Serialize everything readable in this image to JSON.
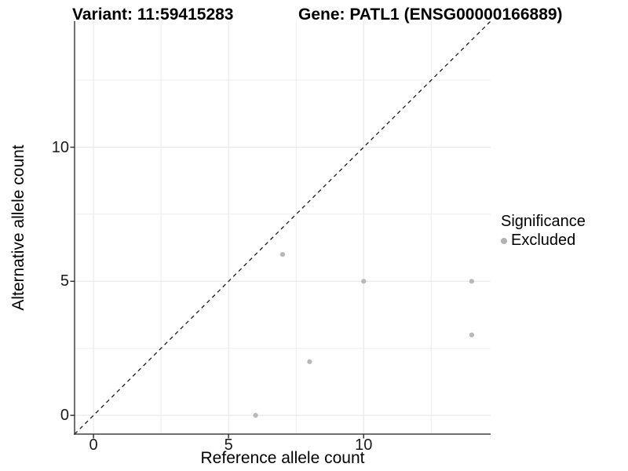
{
  "titles": {
    "variant": "Variant: 11:59415283",
    "gene": "Gene: PATL1 (ENSG00000166889)"
  },
  "legend": {
    "title": "Significance",
    "items": [
      {
        "label": "Excluded",
        "color": "#b3b3b3"
      }
    ]
  },
  "colors": {
    "point": "#b8b8b8",
    "grid_major": "#e9e9e9",
    "grid_minor": "#ededed",
    "axis_line": "#404040",
    "tick_mark": "#333333",
    "reference_line": "#1a1a1a"
  },
  "chart_data": {
    "type": "scatter",
    "title_left": "Variant: 11:59415283",
    "title_right": "Gene: PATL1 (ENSG00000166889)",
    "xlabel": "Reference allele count",
    "ylabel": "Alternative allele count",
    "xlim": [
      -0.7,
      14.7
    ],
    "ylim": [
      -0.7,
      14.7
    ],
    "x_ticks": [
      0,
      5,
      10
    ],
    "y_ticks": [
      0,
      5,
      10
    ],
    "x_minor_ticks": [
      2.5,
      7.5,
      12.5
    ],
    "y_minor_ticks": [
      2.5,
      7.5,
      12.5
    ],
    "grid": true,
    "legend_position": "right",
    "reference_line": {
      "style": "dashed",
      "slope": 1,
      "intercept": 0
    },
    "series": [
      {
        "name": "Excluded",
        "color": "#b8b8b8",
        "points": [
          {
            "x": 6,
            "y": 0
          },
          {
            "x": 8,
            "y": 2
          },
          {
            "x": 14,
            "y": 3
          },
          {
            "x": 10,
            "y": 5
          },
          {
            "x": 14,
            "y": 5
          },
          {
            "x": 7,
            "y": 6
          }
        ]
      }
    ]
  }
}
